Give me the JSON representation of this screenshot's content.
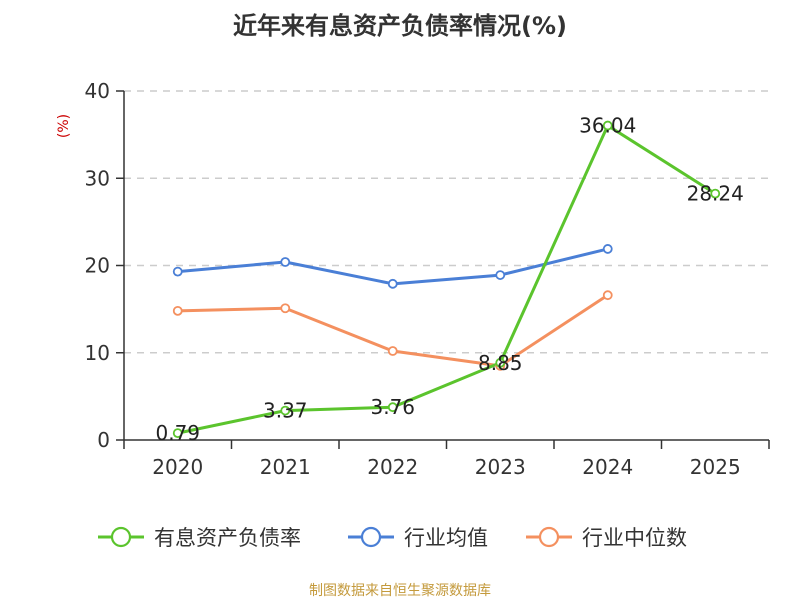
{
  "chart_data": {
    "type": "line",
    "title": "近年来有息资产负债率情况(%)",
    "unit_label": "(%)",
    "categories": [
      "2020",
      "2021",
      "2022",
      "2023",
      "2024",
      "2025"
    ],
    "ylim": [
      0,
      40
    ],
    "yticks": [
      0,
      10,
      20,
      30,
      40
    ],
    "grid": true,
    "legend_position": "bottom",
    "series": [
      {
        "name": "有息资产负债率",
        "color": "#5bc42d",
        "values": [
          0.79,
          3.37,
          3.76,
          8.85,
          36.04,
          28.24
        ],
        "labels": [
          "0.79",
          "3.37",
          "3.76",
          "8.85",
          "36.04",
          "28.24"
        ]
      },
      {
        "name": "行业均值",
        "color": "#4a7fd6",
        "values": [
          19.3,
          20.4,
          17.9,
          18.9,
          21.9,
          null
        ]
      },
      {
        "name": "行业中位数",
        "color": "#f4905f",
        "values": [
          14.8,
          15.1,
          10.2,
          8.5,
          16.6,
          null
        ]
      }
    ]
  },
  "source": "制图数据来自恒生聚源数据库"
}
